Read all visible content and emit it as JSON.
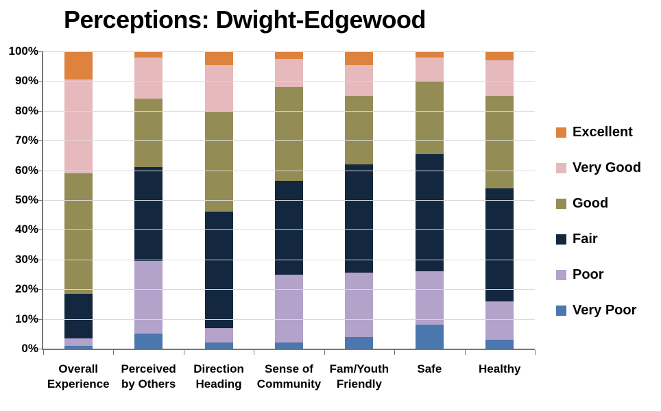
{
  "title": "Perceptions: Dwight-Edgewood",
  "y_axis": {
    "tick_labels": [
      "100%",
      "90%",
      "80%",
      "70%",
      "60%",
      "50%",
      "40%",
      "30%",
      "20%",
      "10%",
      "0%"
    ]
  },
  "x_axis": {
    "categories": [
      "Overall Experience",
      "Perceived by Others",
      "Direction Heading",
      "Sense of Community",
      "Fam/Youth Friendly",
      "Safe",
      "Healthy"
    ]
  },
  "legend": {
    "items": [
      "Excellent",
      "Very Good",
      "Good",
      "Fair",
      "Poor",
      "Very Poor"
    ]
  },
  "colors": {
    "excellent": "#DE833E",
    "very_good": "#E6B9BC",
    "good": "#948C55",
    "fair": "#13283F",
    "poor": "#B3A2C9",
    "very_poor": "#4A77AD",
    "gridline": "#D9D9D9",
    "axis": "#767676"
  },
  "chart_data": {
    "type": "bar",
    "stacked": true,
    "title": "Perceptions: Dwight-Edgewood",
    "categories": [
      "Overall Experience",
      "Perceived by Others",
      "Direction Heading",
      "Sense of Community",
      "Fam/Youth Friendly",
      "Safe",
      "Healthy"
    ],
    "series": [
      {
        "name": "Very Poor",
        "color": "#4A77AD",
        "values": [
          1,
          5,
          2,
          2,
          4,
          8,
          3
        ]
      },
      {
        "name": "Poor",
        "color": "#B3A2C9",
        "values": [
          2.5,
          24.5,
          5,
          23,
          21.5,
          18,
          13
        ]
      },
      {
        "name": "Fair",
        "color": "#13283F",
        "values": [
          15,
          31.5,
          39,
          31.5,
          36.5,
          39.5,
          38
        ]
      },
      {
        "name": "Good",
        "color": "#948C55",
        "values": [
          40.5,
          23,
          34,
          31.5,
          23,
          24.5,
          31
        ]
      },
      {
        "name": "Very Good",
        "color": "#E6B9BC",
        "values": [
          31.5,
          14,
          15.5,
          9.5,
          10.5,
          8,
          12
        ]
      },
      {
        "name": "Excellent",
        "color": "#DE833E",
        "values": [
          9.5,
          2,
          4.5,
          2.5,
          4.5,
          2,
          3
        ]
      }
    ],
    "ylabel": "",
    "xlabel": "",
    "ylim": [
      0,
      100
    ],
    "y_tick_step": 10,
    "y_tick_format": "percent",
    "grid": true,
    "legend_position": "right",
    "legend_order_top_to_bottom": [
      "Excellent",
      "Very Good",
      "Good",
      "Fair",
      "Poor",
      "Very Poor"
    ]
  }
}
